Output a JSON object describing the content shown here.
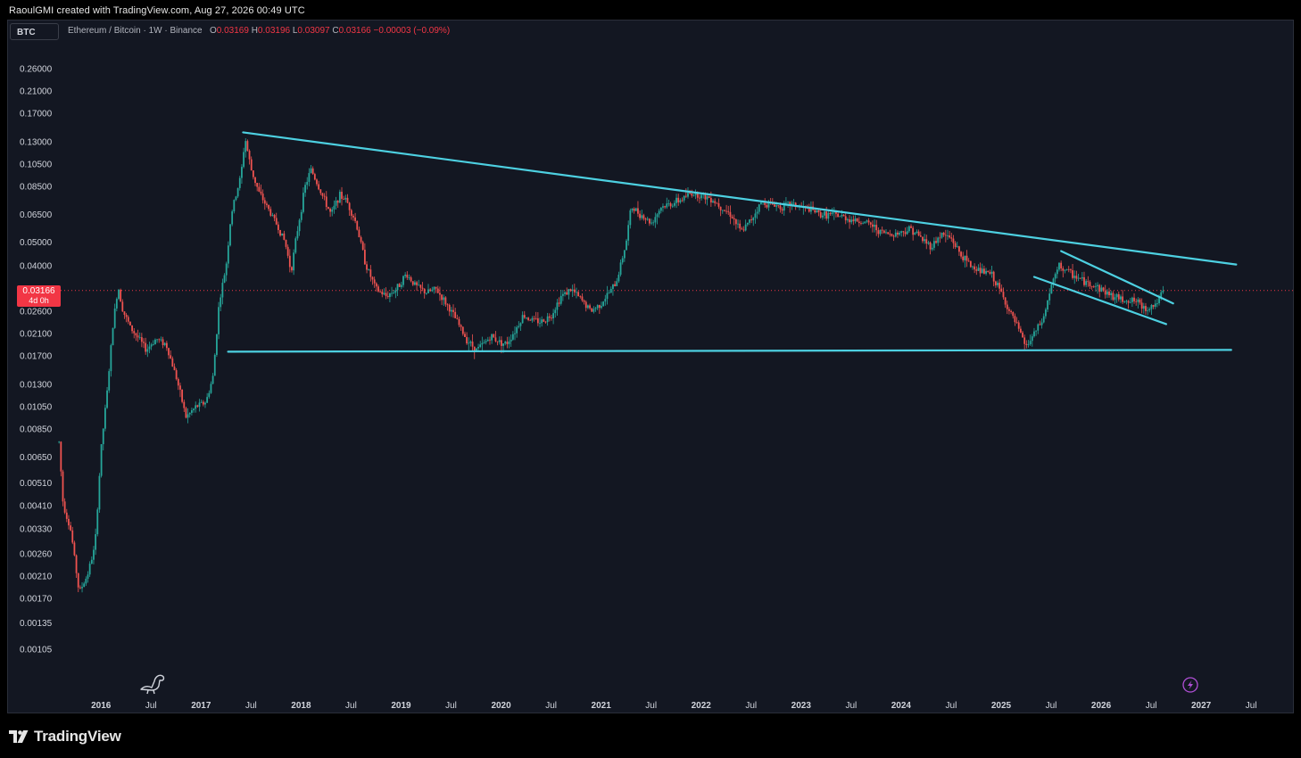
{
  "caption": "RaoulGMI created with TradingView.com, Aug 27, 2026 00:49 UTC",
  "symbol_box": "BTC",
  "legend": {
    "title": "Ethereum / Bitcoin · 1W · Binance",
    "o_label": "O",
    "o_value": "0.03169",
    "h_label": "H",
    "h_value": "0.03196",
    "l_label": "L",
    "l_value": "0.03097",
    "c_label": "C",
    "c_value": "0.03166",
    "change": "−0.00003 (−0.09%)"
  },
  "price_tag": {
    "price": "0.03166",
    "countdown": "4d 0h"
  },
  "brand": {
    "name": "TradingView",
    "icon": "tradingview-logo-icon"
  },
  "icons": {
    "watermark": "dinosaur-icon",
    "flash": "lightning-icon"
  },
  "colors": {
    "up": "#26a69a",
    "down": "#ef5350",
    "trendline": "#4dd0e1",
    "background": "#131722"
  },
  "chart_data": {
    "type": "candlestick",
    "y_scale": "log",
    "ylim": [
      0.00095,
      0.3
    ],
    "xlim": [
      2015.4,
      2027.9
    ],
    "y_ticks": [
      "0.26000",
      "0.21000",
      "0.17000",
      "0.13000",
      "0.10500",
      "0.08500",
      "0.06500",
      "0.05000",
      "0.04000",
      "0.02600",
      "0.02100",
      "0.01700",
      "0.01300",
      "0.01050",
      "0.00850",
      "0.00650",
      "0.00510",
      "0.00410",
      "0.00330",
      "0.00260",
      "0.00210",
      "0.00170",
      "0.00135",
      "0.00105"
    ],
    "x_ticks": [
      {
        "label": "2016",
        "x": 2016.0,
        "year": true
      },
      {
        "label": "Jul",
        "x": 2016.5
      },
      {
        "label": "2017",
        "x": 2017.0,
        "year": true
      },
      {
        "label": "Jul",
        "x": 2017.5
      },
      {
        "label": "2018",
        "x": 2018.0,
        "year": true
      },
      {
        "label": "Jul",
        "x": 2018.5
      },
      {
        "label": "2019",
        "x": 2019.0,
        "year": true
      },
      {
        "label": "Jul",
        "x": 2019.5
      },
      {
        "label": "2020",
        "x": 2020.0,
        "year": true
      },
      {
        "label": "Jul",
        "x": 2020.5
      },
      {
        "label": "2021",
        "x": 2021.0,
        "year": true
      },
      {
        "label": "Jul",
        "x": 2021.5
      },
      {
        "label": "2022",
        "x": 2022.0,
        "year": true
      },
      {
        "label": "Jul",
        "x": 2022.5
      },
      {
        "label": "2023",
        "x": 2023.0,
        "year": true
      },
      {
        "label": "Jul",
        "x": 2023.5
      },
      {
        "label": "2024",
        "x": 2024.0,
        "year": true
      },
      {
        "label": "Jul",
        "x": 2024.5
      },
      {
        "label": "2025",
        "x": 2025.0,
        "year": true
      },
      {
        "label": "Jul",
        "x": 2025.5
      },
      {
        "label": "2026",
        "x": 2026.0,
        "year": true
      },
      {
        "label": "Jul",
        "x": 2026.5
      },
      {
        "label": "2027",
        "x": 2027.0,
        "year": true
      },
      {
        "label": "Jul",
        "x": 2027.5
      }
    ],
    "price_path": [
      [
        2015.58,
        0.0075
      ],
      [
        2015.62,
        0.0042
      ],
      [
        2015.7,
        0.0032
      ],
      [
        2015.78,
        0.0018
      ],
      [
        2015.86,
        0.0021
      ],
      [
        2015.94,
        0.0028
      ],
      [
        2016.0,
        0.007
      ],
      [
        2016.06,
        0.012
      ],
      [
        2016.12,
        0.023
      ],
      [
        2016.17,
        0.033
      ],
      [
        2016.22,
        0.026
      ],
      [
        2016.3,
        0.022
      ],
      [
        2016.38,
        0.02
      ],
      [
        2016.45,
        0.018
      ],
      [
        2016.55,
        0.02
      ],
      [
        2016.65,
        0.019
      ],
      [
        2016.75,
        0.014
      ],
      [
        2016.85,
        0.0095
      ],
      [
        2016.95,
        0.0105
      ],
      [
        2017.05,
        0.011
      ],
      [
        2017.12,
        0.014
      ],
      [
        2017.18,
        0.028
      ],
      [
        2017.25,
        0.04
      ],
      [
        2017.3,
        0.065
      ],
      [
        2017.4,
        0.095
      ],
      [
        2017.44,
        0.135
      ],
      [
        2017.5,
        0.1
      ],
      [
        2017.58,
        0.08
      ],
      [
        2017.66,
        0.07
      ],
      [
        2017.75,
        0.06
      ],
      [
        2017.84,
        0.05
      ],
      [
        2017.9,
        0.038
      ],
      [
        2017.96,
        0.055
      ],
      [
        2018.04,
        0.085
      ],
      [
        2018.1,
        0.1
      ],
      [
        2018.2,
        0.08
      ],
      [
        2018.3,
        0.065
      ],
      [
        2018.38,
        0.078
      ],
      [
        2018.45,
        0.075
      ],
      [
        2018.55,
        0.06
      ],
      [
        2018.65,
        0.04
      ],
      [
        2018.75,
        0.032
      ],
      [
        2018.85,
        0.03
      ],
      [
        2018.95,
        0.032
      ],
      [
        2019.05,
        0.037
      ],
      [
        2019.15,
        0.033
      ],
      [
        2019.25,
        0.031
      ],
      [
        2019.35,
        0.032
      ],
      [
        2019.45,
        0.028
      ],
      [
        2019.55,
        0.024
      ],
      [
        2019.65,
        0.02
      ],
      [
        2019.75,
        0.018
      ],
      [
        2019.82,
        0.019
      ],
      [
        2019.9,
        0.0205
      ],
      [
        2019.98,
        0.0195
      ],
      [
        2020.05,
        0.019
      ],
      [
        2020.15,
        0.022
      ],
      [
        2020.22,
        0.025
      ],
      [
        2020.3,
        0.024
      ],
      [
        2020.4,
        0.0235
      ],
      [
        2020.5,
        0.025
      ],
      [
        2020.6,
        0.03
      ],
      [
        2020.7,
        0.032
      ],
      [
        2020.8,
        0.029
      ],
      [
        2020.9,
        0.026
      ],
      [
        2021.0,
        0.028
      ],
      [
        2021.08,
        0.031
      ],
      [
        2021.15,
        0.034
      ],
      [
        2021.25,
        0.05
      ],
      [
        2021.3,
        0.07
      ],
      [
        2021.4,
        0.065
      ],
      [
        2021.5,
        0.06
      ],
      [
        2021.6,
        0.07
      ],
      [
        2021.7,
        0.072
      ],
      [
        2021.8,
        0.075
      ],
      [
        2021.9,
        0.08
      ],
      [
        2022.0,
        0.078
      ],
      [
        2022.1,
        0.076
      ],
      [
        2022.2,
        0.07
      ],
      [
        2022.3,
        0.065
      ],
      [
        2022.4,
        0.055
      ],
      [
        2022.5,
        0.062
      ],
      [
        2022.6,
        0.073
      ],
      [
        2022.7,
        0.072
      ],
      [
        2022.8,
        0.07
      ],
      [
        2022.9,
        0.072
      ],
      [
        2023.0,
        0.07
      ],
      [
        2023.1,
        0.068
      ],
      [
        2023.2,
        0.065
      ],
      [
        2023.3,
        0.065
      ],
      [
        2023.4,
        0.064
      ],
      [
        2023.5,
        0.062
      ],
      [
        2023.6,
        0.061
      ],
      [
        2023.7,
        0.059
      ],
      [
        2023.8,
        0.055
      ],
      [
        2023.9,
        0.054
      ],
      [
        2024.0,
        0.055
      ],
      [
        2024.1,
        0.057
      ],
      [
        2024.2,
        0.052
      ],
      [
        2024.3,
        0.048
      ],
      [
        2024.4,
        0.054
      ],
      [
        2024.5,
        0.052
      ],
      [
        2024.6,
        0.044
      ],
      [
        2024.7,
        0.04
      ],
      [
        2024.8,
        0.038
      ],
      [
        2024.9,
        0.037
      ],
      [
        2025.0,
        0.031
      ],
      [
        2025.08,
        0.026
      ],
      [
        2025.15,
        0.023
      ],
      [
        2025.25,
        0.0185
      ],
      [
        2025.33,
        0.021
      ],
      [
        2025.42,
        0.024
      ],
      [
        2025.5,
        0.033
      ],
      [
        2025.58,
        0.04
      ],
      [
        2025.66,
        0.038
      ],
      [
        2025.75,
        0.036
      ],
      [
        2025.85,
        0.034
      ],
      [
        2025.95,
        0.033
      ],
      [
        2026.05,
        0.031
      ],
      [
        2026.15,
        0.0295
      ],
      [
        2026.25,
        0.029
      ],
      [
        2026.35,
        0.0285
      ],
      [
        2026.45,
        0.0265
      ],
      [
        2026.55,
        0.028
      ],
      [
        2026.63,
        0.0317
      ]
    ],
    "trendlines": [
      {
        "name": "upper-resistance",
        "from": [
          2017.42,
          0.142
        ],
        "to": [
          2027.35,
          0.0405
        ]
      },
      {
        "name": "horizontal-support",
        "from": [
          2017.27,
          0.0177
        ],
        "to": [
          2027.3,
          0.018
        ]
      },
      {
        "name": "channel-upper",
        "from": [
          2025.6,
          0.046
        ],
        "to": [
          2026.72,
          0.028
        ]
      },
      {
        "name": "channel-lower",
        "from": [
          2025.33,
          0.036
        ],
        "to": [
          2026.65,
          0.023
        ]
      }
    ],
    "last_price": 0.03166
  }
}
